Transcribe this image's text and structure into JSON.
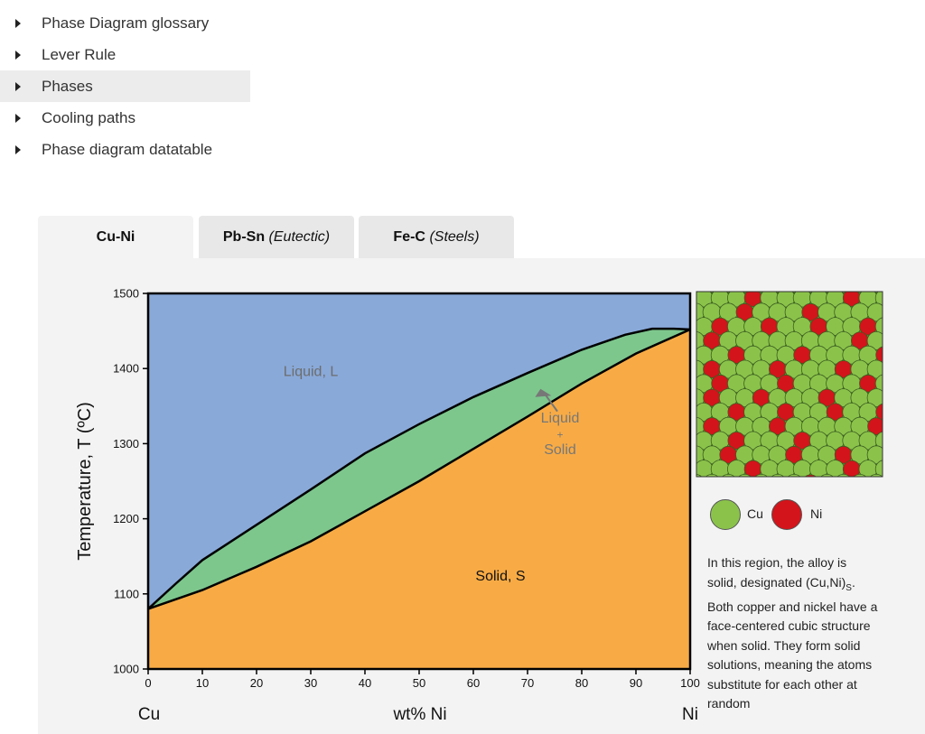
{
  "nav": {
    "items": [
      {
        "label": "Phase Diagram glossary"
      },
      {
        "label": "Lever Rule"
      },
      {
        "label": "Phases"
      },
      {
        "label": "Cooling paths"
      },
      {
        "label": "Phase diagram datatable"
      }
    ],
    "active_index": 2
  },
  "tabs": [
    {
      "label": "Cu-Ni",
      "suffix": ""
    },
    {
      "label": "Pb-Sn",
      "suffix": "(Eutectic)"
    },
    {
      "label": "Fe-C",
      "suffix": "(Steels)"
    }
  ],
  "chart_data": {
    "type": "area",
    "xlabel": "wt% Ni",
    "ylabel": "Temperature, T  (ºC)",
    "x_end_labels": [
      "Cu",
      "Ni"
    ],
    "xlim": [
      0,
      100
    ],
    "ylim": [
      1000,
      1500
    ],
    "x_ticks": [
      0,
      10,
      20,
      30,
      40,
      50,
      60,
      70,
      80,
      90,
      100
    ],
    "y_ticks": [
      1000,
      1100,
      1200,
      1300,
      1400,
      1500
    ],
    "liquidus": {
      "x": [
        0,
        5,
        10,
        20,
        30,
        40,
        50,
        60,
        70,
        80,
        88,
        93,
        97,
        100
      ],
      "y": [
        1080,
        1113,
        1145,
        1192,
        1239,
        1287,
        1326,
        1362,
        1394,
        1425,
        1445,
        1453,
        1453,
        1452
      ]
    },
    "solidus": {
      "x": [
        0,
        10,
        20,
        30,
        40,
        50,
        60,
        70,
        80,
        90,
        100
      ],
      "y": [
        1080,
        1105,
        1136,
        1170,
        1210,
        1250,
        1293,
        1336,
        1380,
        1420,
        1452
      ]
    },
    "regions": [
      {
        "label": "Liquid, L",
        "x": 30,
        "y": 1390,
        "color": "#89a9d9"
      },
      {
        "label": "Liquid",
        "x": 76,
        "y": 1328,
        "color": "#7dc78d"
      },
      {
        "label": "+",
        "x": 76,
        "y": 1307,
        "color": "#7dc78d"
      },
      {
        "label": "Solid",
        "x": 76,
        "y": 1286,
        "color": "#7dc78d"
      },
      {
        "label": "Solid, S",
        "x": 65,
        "y": 1118,
        "color": "#f8ab45"
      }
    ]
  },
  "lattice": {
    "cu_color": "#8bc34a",
    "ni_color": "#d3141a"
  },
  "legend": [
    {
      "label": "Cu",
      "color": "#8bc34a"
    },
    {
      "label": "Ni",
      "color": "#d3141a"
    }
  ],
  "description": {
    "before": "In this region, the alloy is solid, designated (Cu,Ni)",
    "sub": "S",
    "after": ". Both copper and nickel have a face-centered cubic structure when solid. They form solid solutions, meaning the atoms substitute for each other at random"
  }
}
